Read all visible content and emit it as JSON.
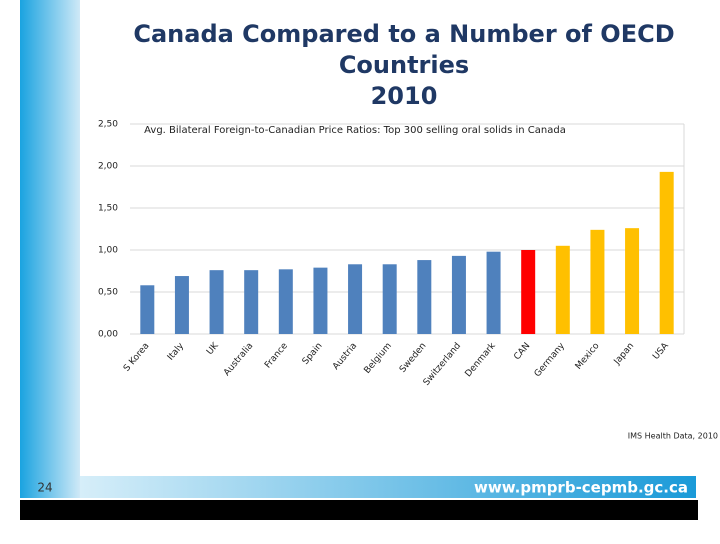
{
  "chart_data": {
    "type": "bar",
    "title": [
      "Canada Compared to a Number of OECD",
      "Countries",
      "2010"
    ],
    "subtitle": "Avg. Bilateral Foreign-to-Canadian Price Ratios: Top 300 selling oral solids in Canada",
    "categories": [
      "S Korea",
      "Italy",
      "UK",
      "Australia",
      "France",
      "Spain",
      "Austria",
      "Belgium",
      "Sweden",
      "Switzerland",
      "Denmark",
      "CAN",
      "Germany",
      "Mexico",
      "Japan",
      "USA"
    ],
    "values": [
      0.58,
      0.69,
      0.76,
      0.76,
      0.77,
      0.79,
      0.83,
      0.83,
      0.88,
      0.93,
      0.98,
      1.0,
      1.05,
      1.24,
      1.26,
      1.93
    ],
    "colors": [
      "#4f81bd",
      "#4f81bd",
      "#4f81bd",
      "#4f81bd",
      "#4f81bd",
      "#4f81bd",
      "#4f81bd",
      "#4f81bd",
      "#4f81bd",
      "#4f81bd",
      "#4f81bd",
      "#ff0000",
      "#ffc000",
      "#ffc000",
      "#ffc000",
      "#ffc000"
    ],
    "ylim": [
      0,
      2.5
    ],
    "yticks": [
      {
        "value": 0,
        "label": "0,00"
      },
      {
        "value": 0.5,
        "label": "0,50"
      },
      {
        "value": 1,
        "label": "1,00"
      },
      {
        "value": 1.5,
        "label": "1,50"
      },
      {
        "value": 2,
        "label": "2,00"
      },
      {
        "value": 2.5,
        "label": "2,50"
      }
    ],
    "grid": true,
    "source": "IMS Health Data, 2010"
  },
  "footer": {
    "page": "24",
    "url": "www.pmprb-cepmb.gc.ca"
  }
}
